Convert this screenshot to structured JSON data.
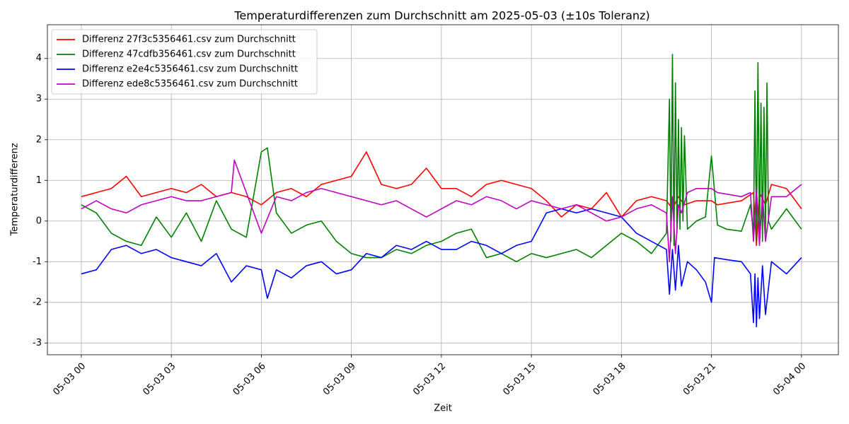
{
  "chart_data": {
    "type": "line",
    "title": "Temperaturdifferenzen zum Durchschnitt am 2025-05-03 (±10s Toleranz)",
    "x_label": "Zeit",
    "y_label": "Temperaturdifferenz",
    "xlim": [
      -1.13,
      25.23
    ],
    "ylim": [
      -3.29,
      4.83
    ],
    "xticks": [
      {
        "value": 0,
        "label": "05-03 00"
      },
      {
        "value": 3,
        "label": "05-03 03"
      },
      {
        "value": 6,
        "label": "05-03 06"
      },
      {
        "value": 9,
        "label": "05-03 09"
      },
      {
        "value": 12,
        "label": "05-03 12"
      },
      {
        "value": 15,
        "label": "05-03 15"
      },
      {
        "value": 18,
        "label": "05-03 18"
      },
      {
        "value": 21,
        "label": "05-03 21"
      },
      {
        "value": 24,
        "label": "05-04 00"
      }
    ],
    "yticks": [
      -3,
      -2,
      -1,
      0,
      1,
      2,
      3,
      4
    ],
    "grid": true,
    "legend": "upper left",
    "series": [
      {
        "name": "Differenz 27f3c5356461.csv zum Durchschnitt",
        "color": "#ff0000",
        "x": [
          0,
          0.5,
          1,
          1.5,
          2,
          2.5,
          3,
          3.5,
          4,
          4.5,
          5,
          5.5,
          6,
          6.5,
          7,
          7.5,
          8,
          8.5,
          9,
          9.5,
          10,
          10.5,
          11,
          11.5,
          12,
          12.5,
          13,
          13.5,
          14,
          14.5,
          15,
          15.5,
          16,
          16.5,
          17,
          17.5,
          18,
          18.5,
          19,
          19.5,
          19.7,
          19.9,
          20.1,
          20.5,
          21,
          21.2,
          22,
          22.4,
          22.5,
          22.6,
          22.8,
          23,
          23.5,
          24
        ],
        "values": [
          0.6,
          0.7,
          0.8,
          1.1,
          0.6,
          0.7,
          0.8,
          0.7,
          0.9,
          0.6,
          0.7,
          0.6,
          0.4,
          0.7,
          0.8,
          0.6,
          0.9,
          1.0,
          1.1,
          1.7,
          0.9,
          0.8,
          0.9,
          1.3,
          0.8,
          0.8,
          0.6,
          0.9,
          1.0,
          0.9,
          0.8,
          0.5,
          0.1,
          0.4,
          0.3,
          0.7,
          0.1,
          0.5,
          0.6,
          0.5,
          0.3,
          0.6,
          0.4,
          0.5,
          0.5,
          0.4,
          0.5,
          0.7,
          -0.6,
          0.7,
          0.4,
          0.9,
          0.8,
          0.3
        ]
      },
      {
        "name": "Differenz 47cdfb356461.csv zum Durchschnitt",
        "color": "#008000",
        "x": [
          0,
          0.5,
          1,
          1.5,
          2,
          2.5,
          3,
          3.5,
          4,
          4.5,
          5,
          5.5,
          6,
          6.2,
          6.5,
          7,
          7.5,
          8,
          8.5,
          9,
          9.5,
          10,
          10.5,
          11,
          11.5,
          12,
          12.5,
          13,
          13.5,
          14,
          14.5,
          15,
          15.5,
          16,
          16.5,
          17,
          17.5,
          18,
          18.5,
          19,
          19.5,
          19.6,
          19.65,
          19.7,
          19.75,
          19.8,
          19.85,
          19.9,
          19.95,
          20,
          20.05,
          20.1,
          20.2,
          20.5,
          20.8,
          21,
          21.2,
          21.5,
          22,
          22.3,
          22.4,
          22.45,
          22.5,
          22.55,
          22.6,
          22.65,
          22.7,
          22.75,
          22.8,
          22.85,
          22.9,
          23,
          23.5,
          24
        ],
        "values": [
          0.4,
          0.2,
          -0.3,
          -0.5,
          -0.6,
          0.1,
          -0.4,
          0.2,
          -0.5,
          0.5,
          -0.2,
          -0.4,
          1.7,
          1.8,
          0.2,
          -0.3,
          -0.1,
          0.0,
          -0.5,
          -0.8,
          -0.9,
          -0.9,
          -0.7,
          -0.8,
          -0.6,
          -0.5,
          -0.3,
          -0.2,
          -0.9,
          -0.8,
          -1.0,
          -0.8,
          -0.9,
          -0.8,
          -0.7,
          -0.9,
          -0.6,
          -0.3,
          -0.5,
          -0.8,
          -0.3,
          3.0,
          -0.5,
          4.1,
          -0.6,
          3.4,
          -0.3,
          2.5,
          -0.2,
          2.3,
          0.0,
          2.1,
          -0.2,
          0.0,
          0.1,
          1.6,
          -0.1,
          -0.2,
          -0.25,
          0.4,
          -0.3,
          3.2,
          -0.5,
          3.9,
          -0.4,
          2.9,
          -0.5,
          2.8,
          -0.3,
          3.4,
          0.0,
          -0.2,
          0.3,
          -0.2
        ]
      },
      {
        "name": "Differenz e2e4c5356461.csv zum Durchschnitt",
        "color": "#0000ff",
        "x": [
          0,
          0.5,
          1,
          1.5,
          2,
          2.5,
          3,
          3.5,
          4,
          4.5,
          5,
          5.5,
          6,
          6.2,
          6.5,
          7,
          7.5,
          8,
          8.5,
          9,
          9.5,
          10,
          10.5,
          11,
          11.5,
          12,
          12.5,
          13,
          13.5,
          14,
          14.5,
          15,
          15.5,
          16,
          16.5,
          17,
          17.5,
          18,
          18.5,
          19,
          19.5,
          19.6,
          19.7,
          19.8,
          19.9,
          20,
          20.2,
          20.5,
          20.8,
          21,
          21.1,
          21.5,
          22,
          22.3,
          22.4,
          22.45,
          22.5,
          22.55,
          22.6,
          22.7,
          22.8,
          23,
          23.5,
          24
        ],
        "values": [
          -1.3,
          -1.2,
          -0.7,
          -0.6,
          -0.8,
          -0.7,
          -0.9,
          -1.0,
          -1.1,
          -0.8,
          -1.5,
          -1.1,
          -1.2,
          -1.9,
          -1.2,
          -1.4,
          -1.1,
          -1.0,
          -1.3,
          -1.2,
          -0.8,
          -0.9,
          -0.6,
          -0.7,
          -0.5,
          -0.7,
          -0.7,
          -0.5,
          -0.6,
          -0.8,
          -0.6,
          -0.5,
          0.2,
          0.3,
          0.2,
          0.3,
          0.2,
          0.1,
          -0.3,
          -0.5,
          -0.7,
          -1.8,
          -0.7,
          -1.7,
          -0.6,
          -1.6,
          -1.0,
          -1.2,
          -1.5,
          -2.0,
          -0.9,
          -0.95,
          -1.0,
          -1.3,
          -2.5,
          -1.3,
          -2.6,
          -1.4,
          -2.4,
          -1.1,
          -2.3,
          -1.0,
          -1.3,
          -0.9
        ]
      },
      {
        "name": "Differenz ede8c5356461.csv zum Durchschnitt",
        "color": "#bf00bf",
        "x": [
          0,
          0.5,
          1,
          1.5,
          2,
          2.5,
          3,
          3.5,
          4,
          4.5,
          5,
          5.1,
          5.5,
          6,
          6.5,
          7,
          7.5,
          8,
          8.5,
          9,
          9.5,
          10,
          10.5,
          11,
          11.5,
          12,
          12.5,
          13,
          13.5,
          14,
          14.5,
          15,
          15.5,
          16,
          16.5,
          17,
          17.5,
          18,
          18.5,
          19,
          19.5,
          19.6,
          19.7,
          19.8,
          19.9,
          20,
          20.2,
          20.5,
          21,
          21.2,
          22,
          22.3,
          22.4,
          22.5,
          22.6,
          22.7,
          22.8,
          23,
          23.5,
          24
        ],
        "values": [
          0.3,
          0.5,
          0.3,
          0.2,
          0.4,
          0.5,
          0.6,
          0.5,
          0.5,
          0.6,
          0.7,
          1.5,
          0.7,
          -0.3,
          0.6,
          0.5,
          0.7,
          0.8,
          0.7,
          0.6,
          0.5,
          0.4,
          0.5,
          0.3,
          0.1,
          0.3,
          0.5,
          0.4,
          0.6,
          0.5,
          0.3,
          0.5,
          0.4,
          0.3,
          0.4,
          0.2,
          0.0,
          0.1,
          0.3,
          0.4,
          0.2,
          -1.0,
          0.6,
          -0.8,
          0.4,
          0.2,
          0.7,
          0.8,
          0.8,
          0.7,
          0.6,
          0.7,
          -0.5,
          0.8,
          -0.6,
          0.7,
          -0.5,
          0.6,
          0.6,
          0.9
        ]
      }
    ]
  }
}
